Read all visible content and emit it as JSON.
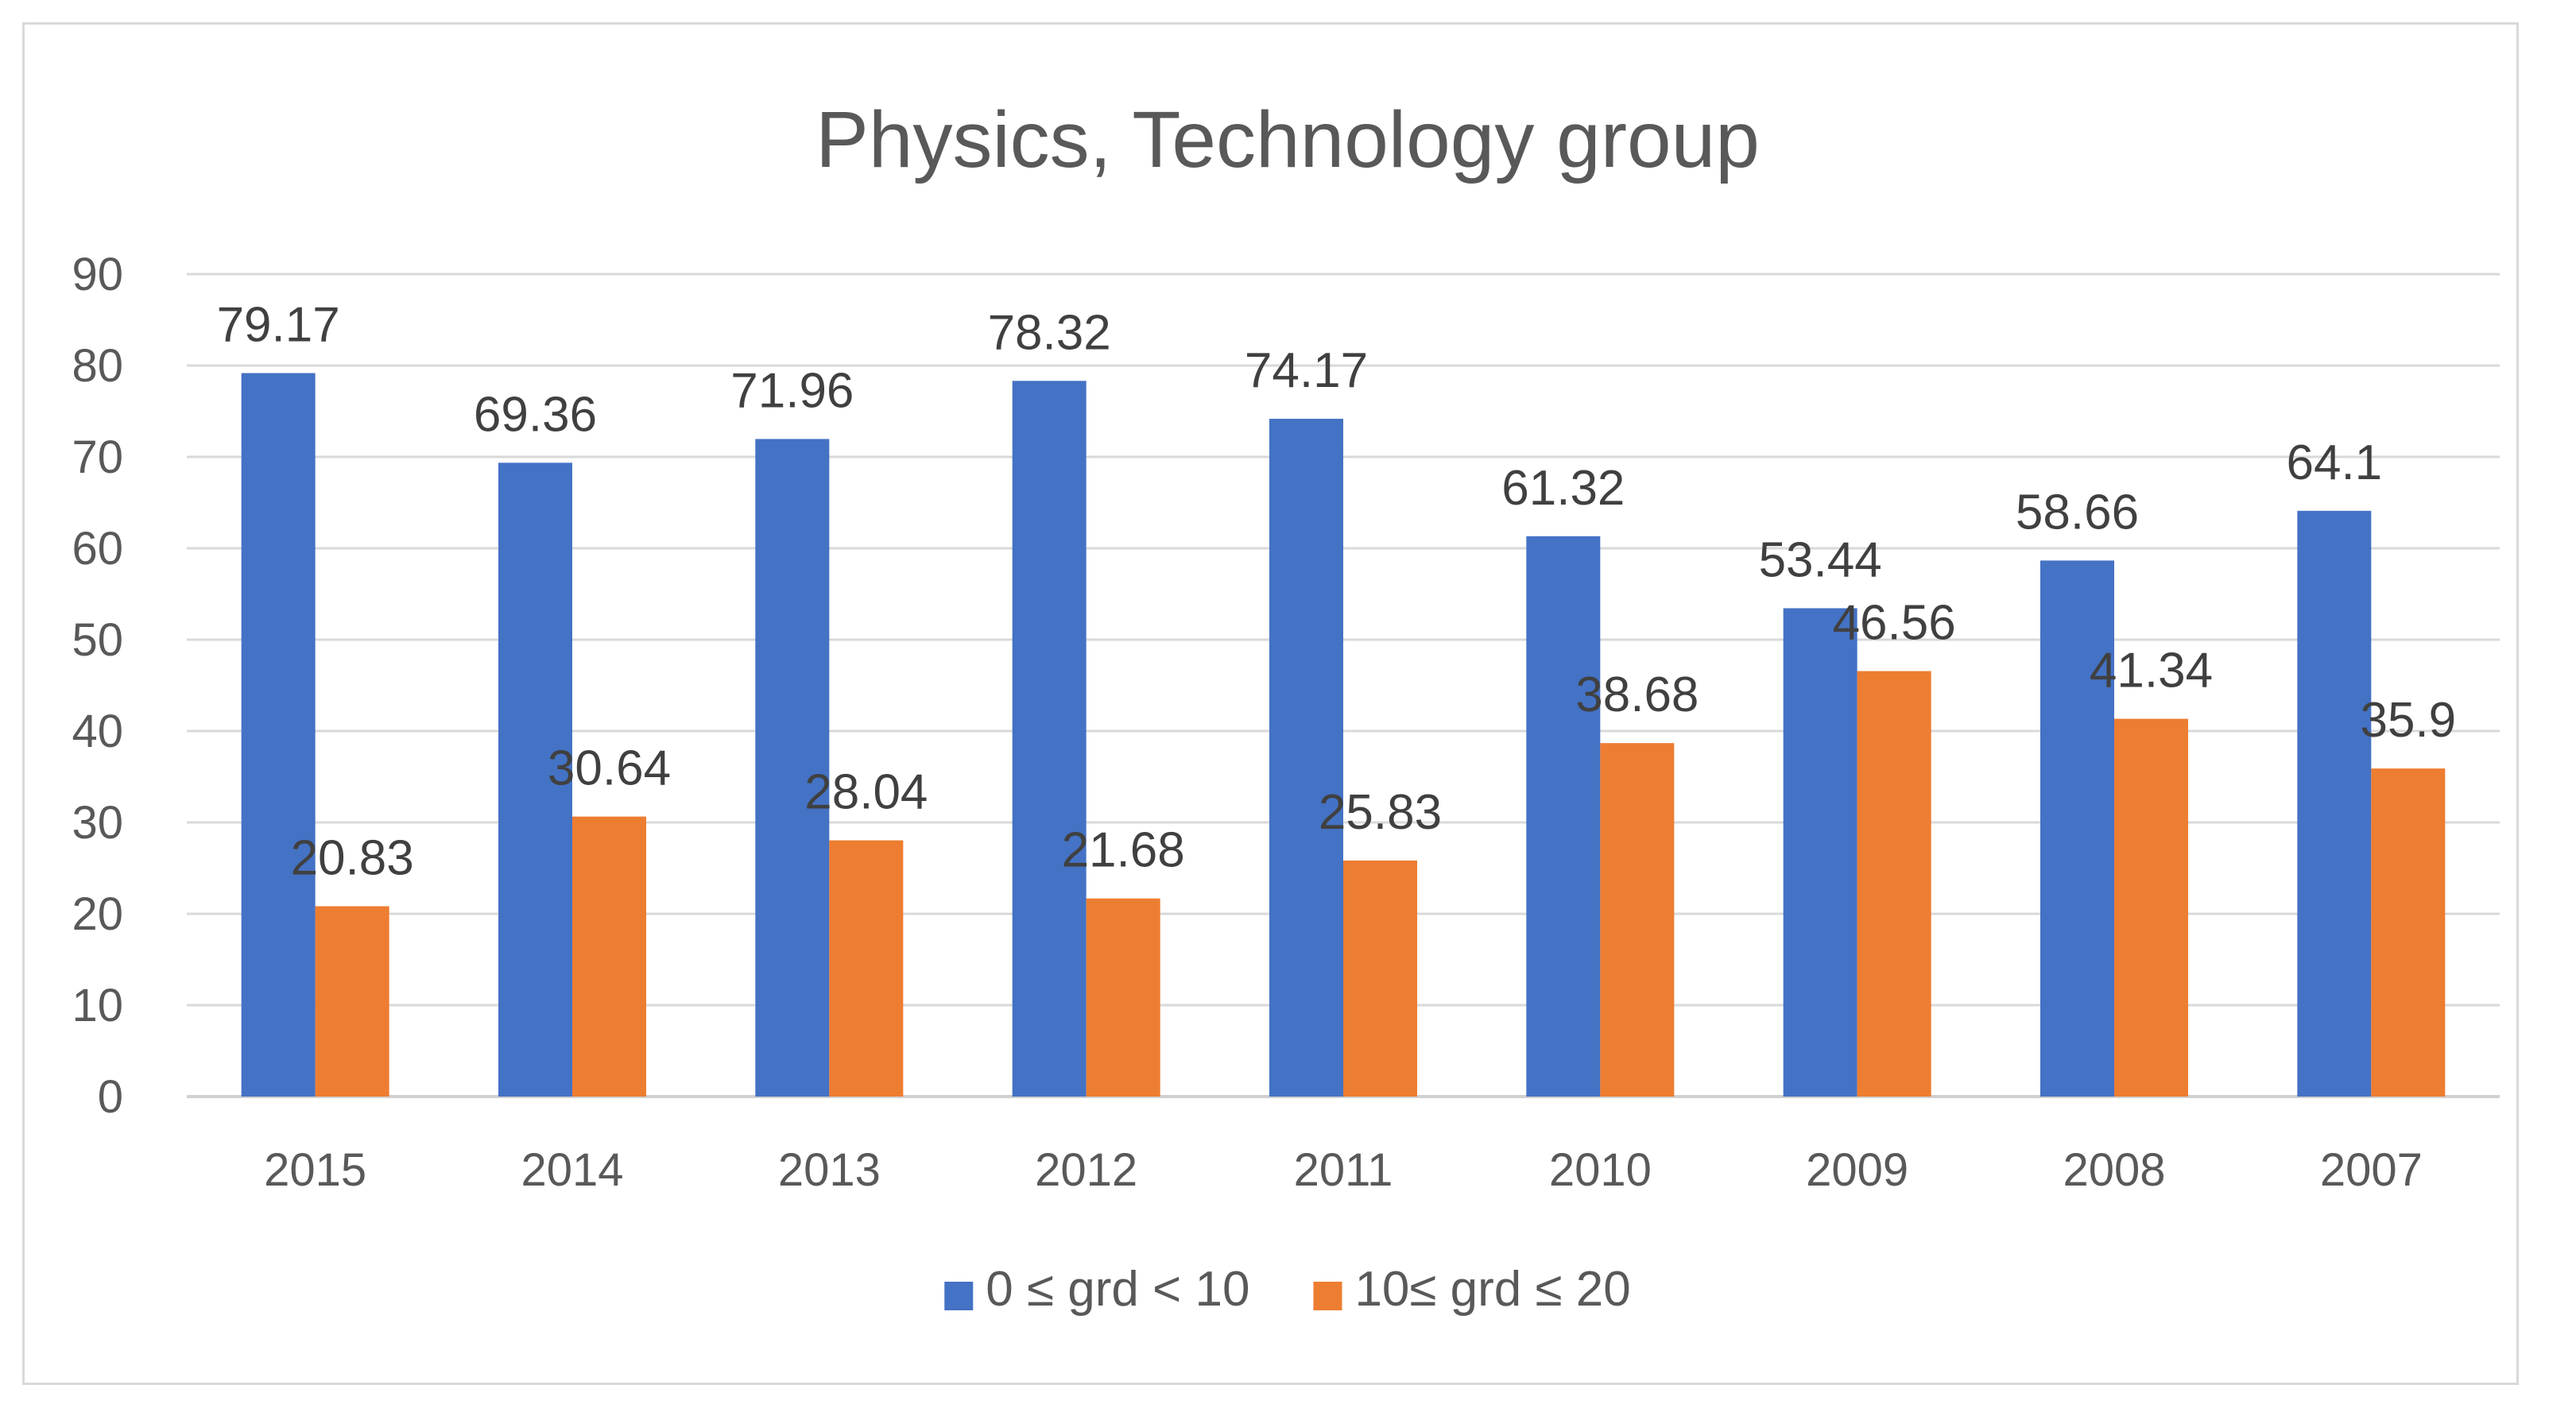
{
  "chart_data": {
    "type": "bar",
    "title": "Physics, Technology group",
    "xlabel": "",
    "ylabel": "",
    "ylim": [
      0,
      90
    ],
    "yticks": [
      0,
      10,
      20,
      30,
      40,
      50,
      60,
      70,
      80,
      90
    ],
    "grid": true,
    "legend_position": "bottom",
    "categories": [
      "2015",
      "2014",
      "2013",
      "2012",
      "2011",
      "2010",
      "2009",
      "2008",
      "2007"
    ],
    "series": [
      {
        "name": "0 ≤ grd < 10",
        "color": "#4472c4",
        "values": [
          79.17,
          69.36,
          71.96,
          78.32,
          74.17,
          61.32,
          53.44,
          58.66,
          64.1
        ],
        "labels": [
          "79.17",
          "69.36",
          "71.96",
          "78.32",
          "74.17",
          "61.32",
          "53.44",
          "58.66",
          "64.1"
        ]
      },
      {
        "name": "10≤ grd ≤ 20",
        "color": "#ed7d31",
        "values": [
          20.83,
          30.64,
          28.04,
          21.68,
          25.83,
          38.68,
          46.56,
          41.34,
          35.9
        ],
        "labels": [
          "20.83",
          "30.64",
          "28.04",
          "21.68",
          "25.83",
          "38.68",
          "46.56",
          "41.34",
          "35.9"
        ]
      }
    ]
  }
}
